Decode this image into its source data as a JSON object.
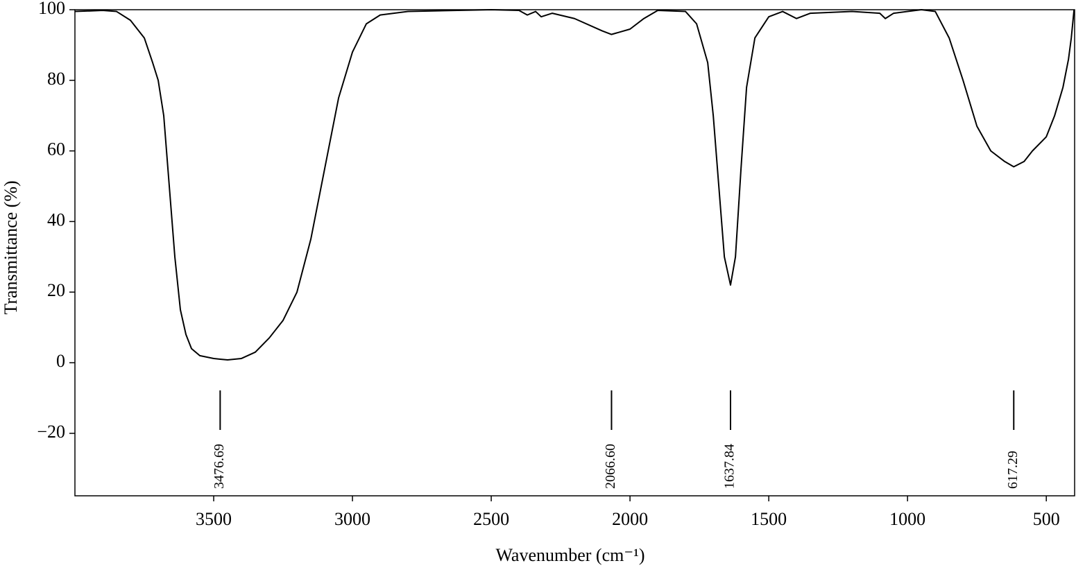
{
  "chart_data": {
    "type": "line",
    "x_label": "Wavenumber (cm⁻¹)",
    "y_label": "Transmittance (%)",
    "color": "#000000",
    "x": [
      4000,
      3900,
      3850,
      3800,
      3750,
      3720,
      3700,
      3680,
      3660,
      3640,
      3620,
      3600,
      3580,
      3550,
      3500,
      3476.69,
      3450,
      3400,
      3350,
      3300,
      3250,
      3200,
      3150,
      3100,
      3050,
      3000,
      2950,
      2900,
      2800,
      2500,
      2400,
      2370,
      2340,
      2320,
      2280,
      2200,
      2100,
      2066.6,
      2000,
      1950,
      1900,
      1800,
      1760,
      1720,
      1700,
      1680,
      1660,
      1637.84,
      1620,
      1600,
      1580,
      1550,
      1500,
      1450,
      1400,
      1350,
      1200,
      1100,
      1080,
      1050,
      1000,
      950,
      900,
      850,
      800,
      750,
      700,
      650,
      617.29,
      580,
      550,
      500,
      470,
      440,
      420,
      410,
      400
    ],
    "values": [
      99.5,
      99.8,
      99.5,
      97,
      92,
      85,
      80,
      70,
      50,
      30,
      15,
      8,
      4,
      2,
      1.2,
      1,
      0.8,
      1.2,
      3,
      7,
      12,
      20,
      35,
      55,
      75,
      88,
      96,
      98.5,
      99.5,
      100,
      99.8,
      98.5,
      99.5,
      98,
      99,
      97.5,
      94,
      93,
      94.5,
      97.5,
      99.8,
      99.5,
      96,
      85,
      70,
      50,
      30,
      22,
      30,
      55,
      78,
      92,
      98,
      99.5,
      97.5,
      99,
      99.5,
      99,
      97.5,
      99,
      99.5,
      100,
      99.5,
      92,
      80,
      67,
      60,
      57,
      55.5,
      57,
      60,
      64,
      70,
      78,
      86,
      92,
      100
    ],
    "xlim": [
      4000,
      398
    ],
    "ylim": [
      -37.7,
      100
    ],
    "xticks": [
      3500,
      3000,
      2500,
      2000,
      1500,
      1000,
      500
    ],
    "yticks": [
      {
        "value": -20,
        "label": "−20"
      },
      0,
      20,
      40,
      60,
      80,
      100
    ],
    "peaks": [
      {
        "x": 3476.69,
        "label": "3476.69"
      },
      {
        "x": 2066.6,
        "label": "2066.60"
      },
      {
        "x": 1637.84,
        "label": "1637.84"
      },
      {
        "x": 617.29,
        "label": "617.29"
      }
    ]
  }
}
